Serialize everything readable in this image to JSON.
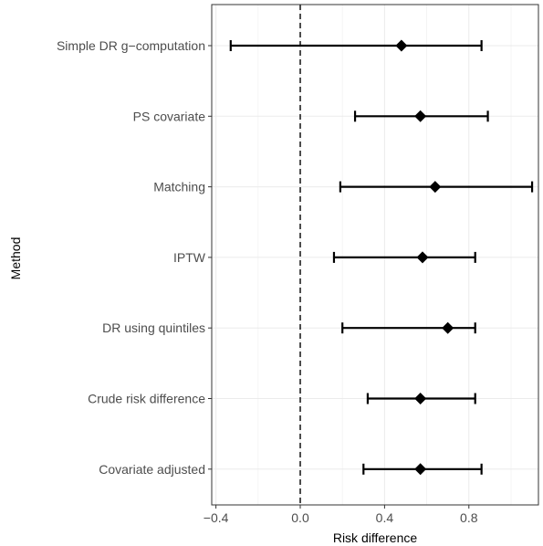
{
  "chart_data": {
    "type": "forest",
    "xlabel": "Risk difference",
    "ylabel": "Method",
    "xlim": [
      -0.42,
      1.13
    ],
    "xticks": [
      -0.4,
      0.0,
      0.4,
      0.8
    ],
    "xtick_labels": [
      "−0.4",
      "0.0",
      "0.4",
      "0.8"
    ],
    "reference_line": 0.0,
    "grid": true,
    "point_shape": "diamond",
    "categories": [
      "Simple DR g−computation",
      "PS covariate",
      "Matching",
      "IPTW",
      "DR using quintiles",
      "Crude risk difference",
      "Covariate adjusted"
    ],
    "estimates": [
      0.48,
      0.57,
      0.64,
      0.58,
      0.7,
      0.57,
      0.57
    ],
    "lower": [
      -0.33,
      0.26,
      0.19,
      0.16,
      0.2,
      0.32,
      0.3
    ],
    "upper": [
      0.86,
      0.89,
      1.1,
      0.83,
      0.83,
      0.83,
      0.86
    ]
  }
}
